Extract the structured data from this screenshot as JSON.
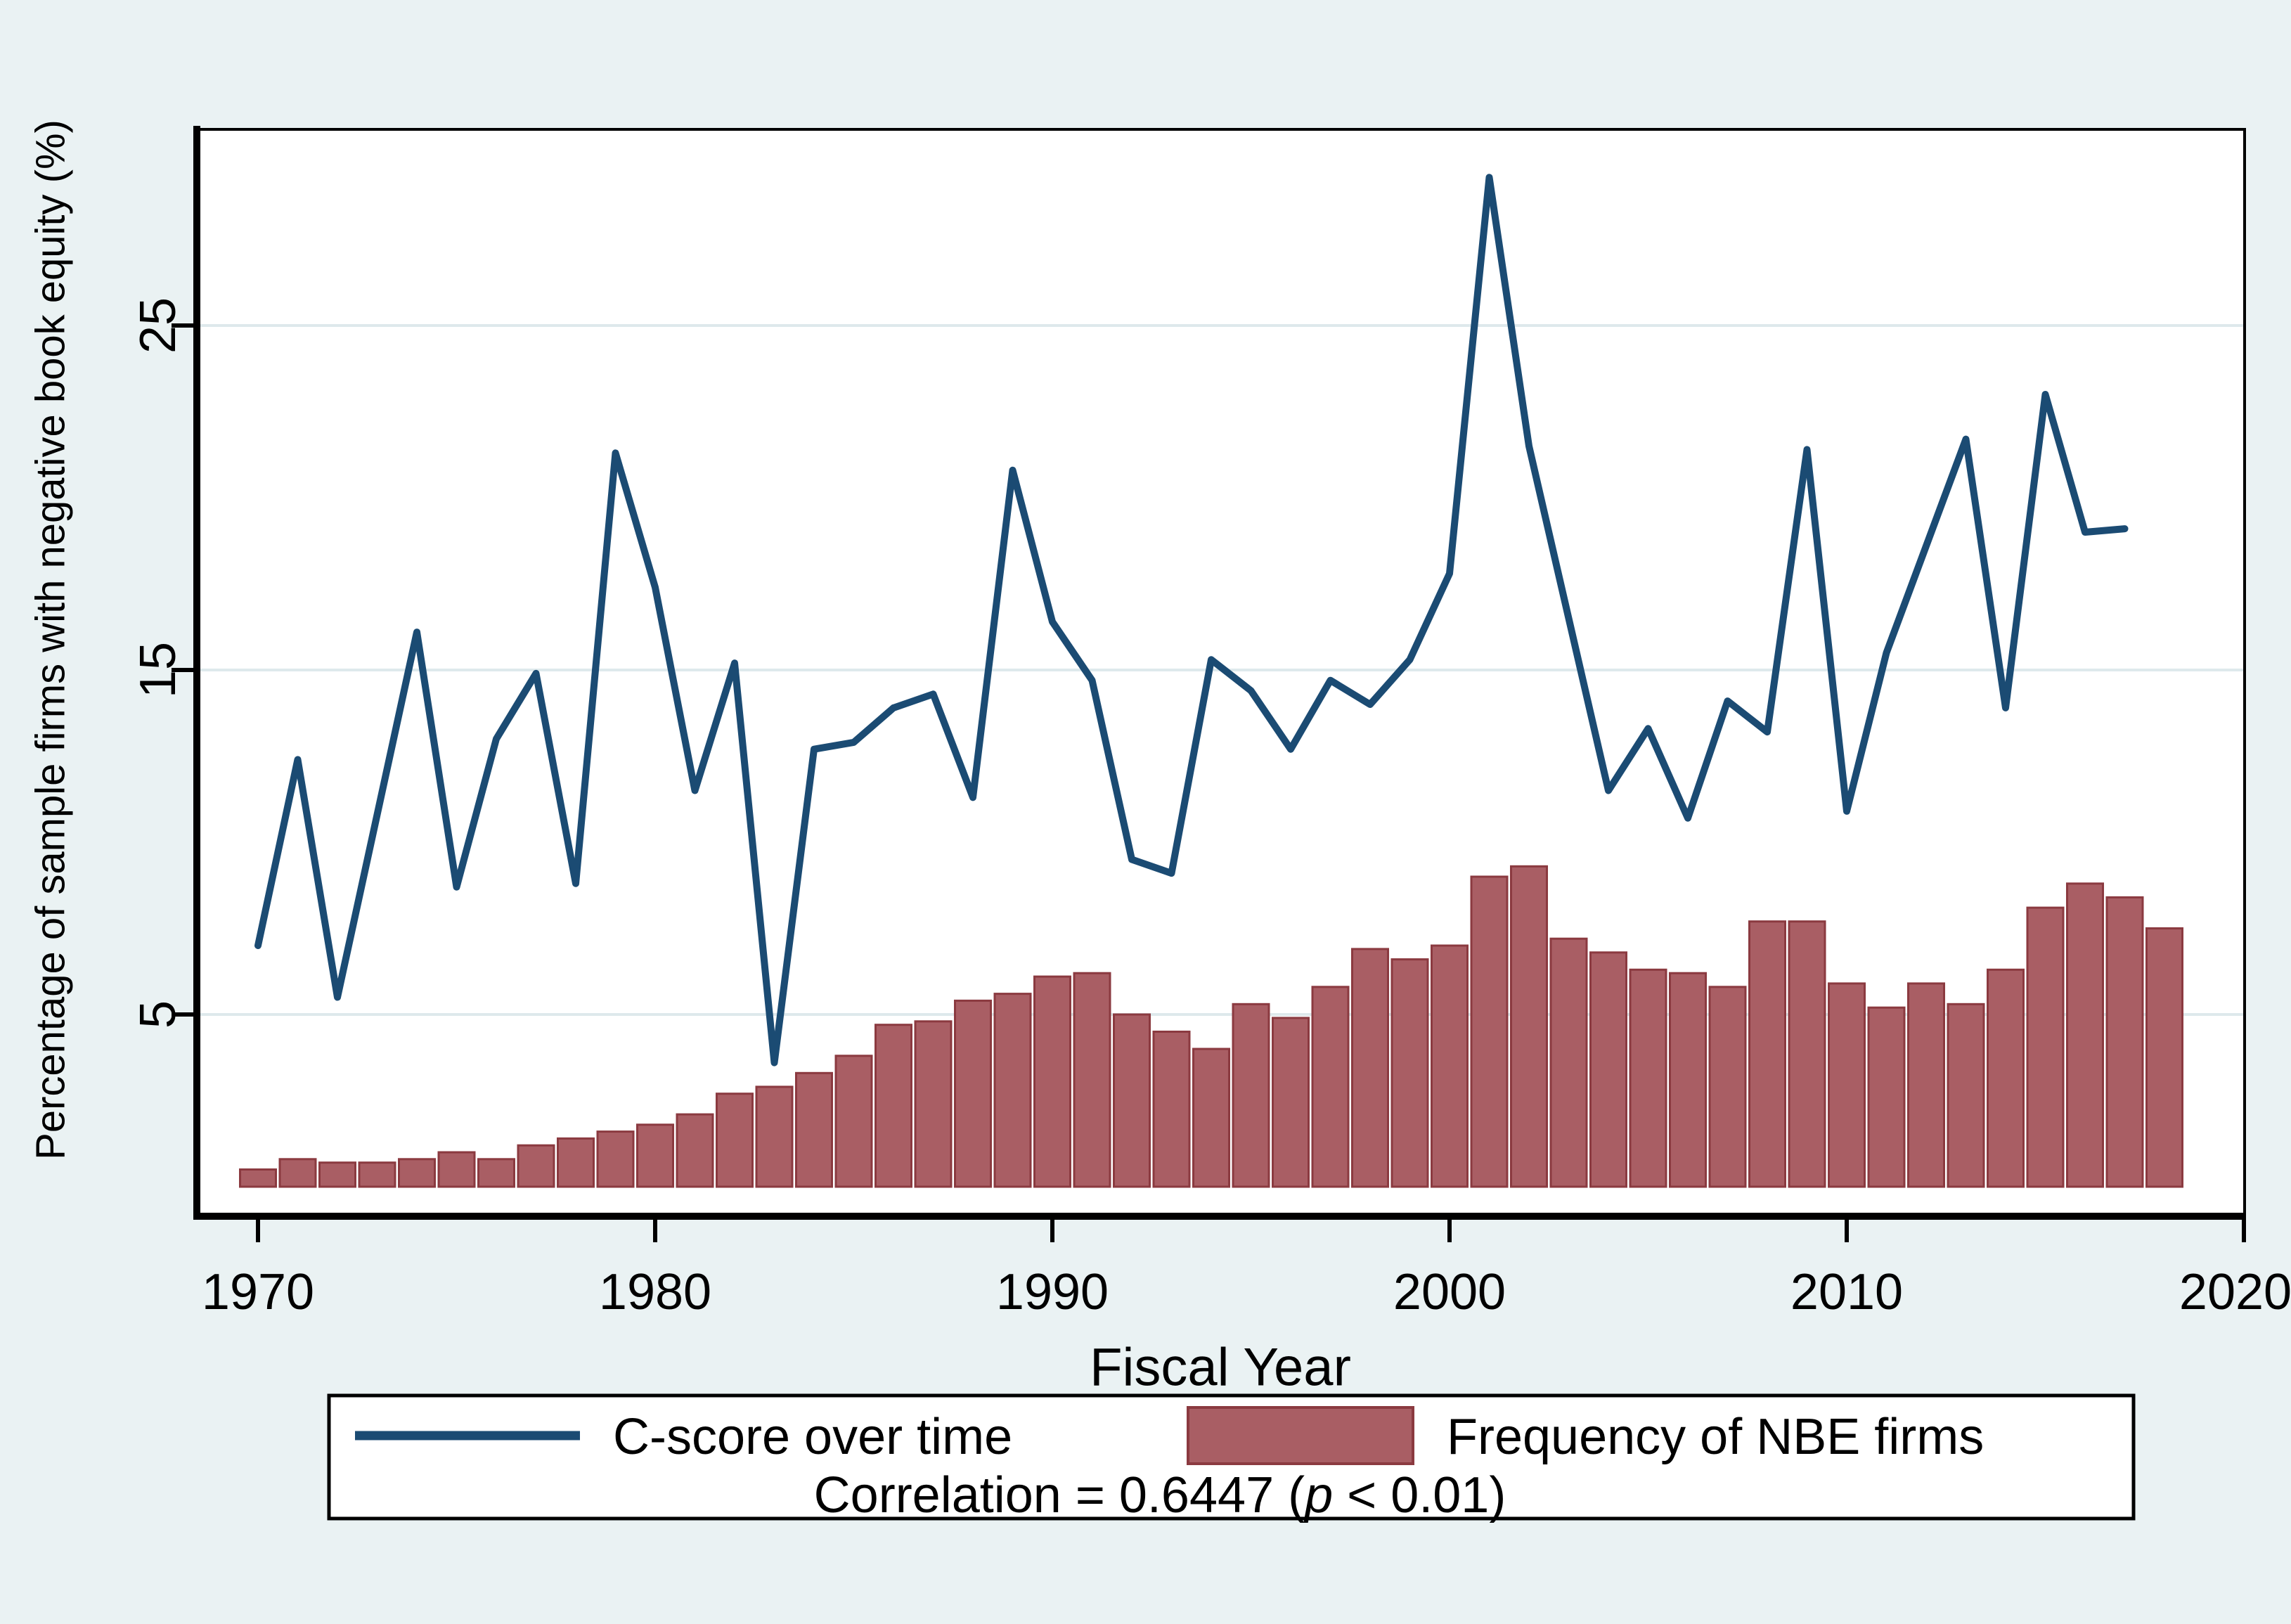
{
  "figure": {
    "kind": "statistical chart (Stata-style combo line + bar)",
    "background": "#EAF2F3",
    "plot_background": "#FFFFFF"
  },
  "chart_data": {
    "type": "combo",
    "xlabel": "Fiscal Year",
    "ylabel": "Percentage of sample firms with negative book equity (%)",
    "x_ticks": [
      1970,
      1980,
      1990,
      2000,
      2010,
      2020
    ],
    "y_ticks": [
      5,
      15,
      25
    ],
    "xlim": [
      1968.4,
      2020
    ],
    "ylim": [
      0,
      30.7
    ],
    "grid": "horizontal gridlines at labeled y ticks",
    "legend_position": "bottom boxed legend with correlation caption",
    "series": [
      {
        "name": "C-score over time",
        "type": "line",
        "color": "#1B4B73",
        "start_year": 1970,
        "values": [
          7.0,
          12.4,
          5.5,
          10.8,
          16.1,
          8.7,
          13.0,
          14.9,
          8.8,
          21.3,
          17.4,
          11.5,
          15.2,
          3.6,
          12.7,
          12.9,
          13.9,
          14.3,
          11.3,
          20.8,
          16.4,
          14.7,
          9.5,
          9.1,
          15.3,
          14.4,
          12.7,
          14.7,
          14.0,
          15.3,
          17.8,
          29.3,
          21.5,
          16.5,
          11.5,
          13.3,
          10.7,
          14.1,
          13.2,
          21.4,
          10.9,
          15.5,
          18.6,
          21.7,
          13.9,
          23.0,
          19.0,
          19.1
        ]
      },
      {
        "name": "Frequency of NBE firms",
        "type": "bar",
        "fill": "#A95E64",
        "border": "#8B3A40",
        "start_year": 1970,
        "values": [
          0.5,
          0.8,
          0.7,
          0.7,
          0.8,
          1.0,
          0.8,
          1.2,
          1.4,
          1.6,
          1.8,
          2.1,
          2.7,
          2.9,
          3.3,
          3.8,
          4.7,
          4.8,
          5.4,
          5.6,
          6.1,
          6.2,
          5.0,
          4.5,
          4.0,
          5.3,
          4.9,
          5.8,
          6.9,
          6.6,
          7.0,
          9.0,
          9.3,
          7.2,
          6.8,
          6.3,
          6.2,
          5.8,
          7.7,
          7.7,
          5.9,
          5.2,
          5.9,
          5.3,
          6.3,
          8.1,
          8.8,
          8.4,
          7.5
        ]
      }
    ],
    "annotation": {
      "prefix": "Correlation = 0.6447 (",
      "p_symbol": "p",
      "suffix": " < 0.01)"
    }
  },
  "colors": {
    "grid": "#DEE9EC",
    "axis": "#000000",
    "text": "#000000"
  }
}
